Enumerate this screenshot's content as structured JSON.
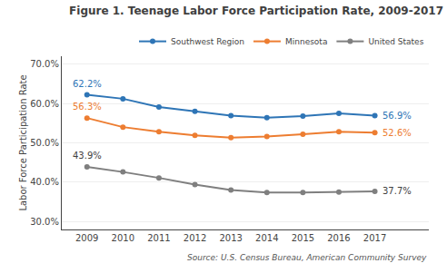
{
  "chart_data": {
    "type": "line",
    "title": "Figure 1. Teenage Labor Force Participation Rate, 2009-2017",
    "ylabel": "Labor Force Participation Rate",
    "source": "Source: U.S. Census Bureau, American Community Survey",
    "x": [
      2009,
      2010,
      2011,
      2012,
      2013,
      2014,
      2015,
      2016,
      2017
    ],
    "series": [
      {
        "name": "Southwest Region",
        "color": "#2E75B6",
        "values": [
          62.2,
          61.2,
          59.1,
          58.0,
          56.9,
          56.4,
          56.8,
          57.5,
          56.9
        ]
      },
      {
        "name": "Minnesota",
        "color": "#ED7D31",
        "values": [
          56.3,
          54.0,
          52.8,
          51.9,
          51.3,
          51.6,
          52.2,
          52.8,
          52.6
        ]
      },
      {
        "name": "United States",
        "color": "#7F7F7F",
        "values": [
          43.9,
          42.6,
          41.1,
          39.4,
          38.0,
          37.4,
          37.4,
          37.5,
          37.7
        ]
      }
    ],
    "xlim": [
      2008.3,
      2018.5
    ],
    "xticks": [
      2009,
      2010,
      2011,
      2012,
      2013,
      2014,
      2015,
      2016,
      2017
    ],
    "ylim": [
      28.0,
      72.0
    ],
    "yticks": [
      {
        "value": 30.0,
        "label": "30.0%"
      },
      {
        "value": 40.0,
        "label": "40.0%"
      },
      {
        "value": 50.0,
        "label": "50.0%"
      },
      {
        "value": 60.0,
        "label": "60.0%"
      },
      {
        "value": 70.0,
        "label": "70.0%"
      }
    ],
    "annotations": [
      {
        "text": "62.2%",
        "x": 2009,
        "y": 62.2,
        "color": "#2E75B6"
      },
      {
        "text": "56.9%",
        "x": 2017,
        "y": 56.9,
        "color": "#2E75B6"
      },
      {
        "text": "56.3%",
        "x": 2009,
        "y": 56.3,
        "color": "#ED7D31"
      },
      {
        "text": "52.6%",
        "x": 2017,
        "y": 52.6,
        "color": "#ED7D31"
      },
      {
        "text": "43.9%",
        "x": 2009,
        "y": 43.9,
        "color": "#404040"
      },
      {
        "text": "37.7%",
        "x": 2017,
        "y": 37.7,
        "color": "#404040"
      }
    ],
    "grid": "y",
    "legend": "upper right",
    "marker": "circle",
    "line_style": "solid"
  }
}
